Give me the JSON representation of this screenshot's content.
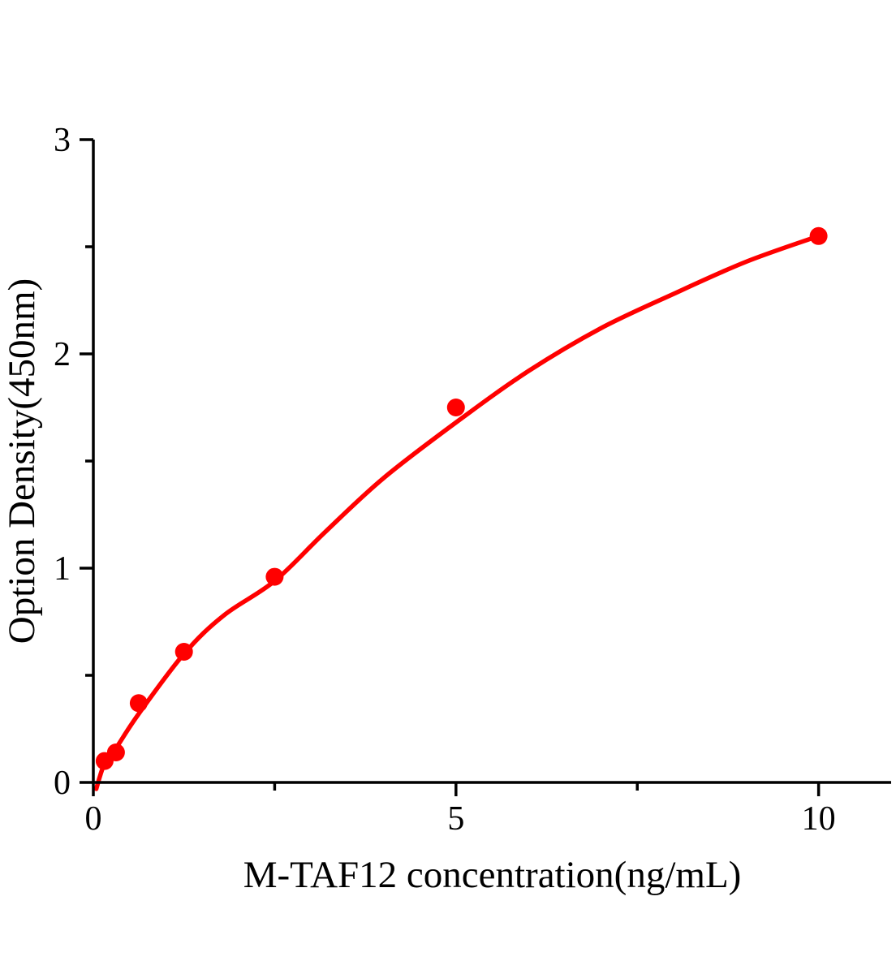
{
  "figure": {
    "background": "#ffffff",
    "accent_color": "#ff0000",
    "axis_color": "#000000"
  },
  "chart_data": {
    "type": "scatter",
    "title": "",
    "xlabel": "M-TAF12 concentration(ng/mL)",
    "ylabel": "Option Density(450nm)",
    "x": [
      0.156,
      0.312,
      0.625,
      1.25,
      2.5,
      5,
      10
    ],
    "y": [
      0.1,
      0.14,
      0.37,
      0.61,
      0.96,
      1.75,
      2.55
    ],
    "fit_curve_points": {
      "x": [
        0.04,
        0.156,
        0.312,
        0.625,
        1.25,
        1.8,
        2.5,
        3.2,
        4.0,
        5.0,
        6.0,
        7.0,
        8.0,
        9.0,
        10.0
      ],
      "y": [
        -0.03,
        0.09,
        0.16,
        0.32,
        0.6,
        0.78,
        0.94,
        1.17,
        1.42,
        1.68,
        1.92,
        2.12,
        2.28,
        2.43,
        2.55
      ]
    },
    "xlim": [
      0,
      11
    ],
    "ylim": [
      0,
      3
    ],
    "xticks": {
      "major": [
        0,
        5,
        10
      ],
      "minor": [
        2.5,
        7.5
      ],
      "labels": [
        "0",
        "5",
        "10"
      ]
    },
    "yticks": {
      "major": [
        0,
        1,
        2,
        3
      ],
      "minor": [
        0.5,
        1.5,
        2.5
      ],
      "labels": [
        "0",
        "1",
        "2",
        "3"
      ]
    },
    "grid": false,
    "legend": "none",
    "marker_color": "#ff0000",
    "line_color": "#ff0000"
  }
}
